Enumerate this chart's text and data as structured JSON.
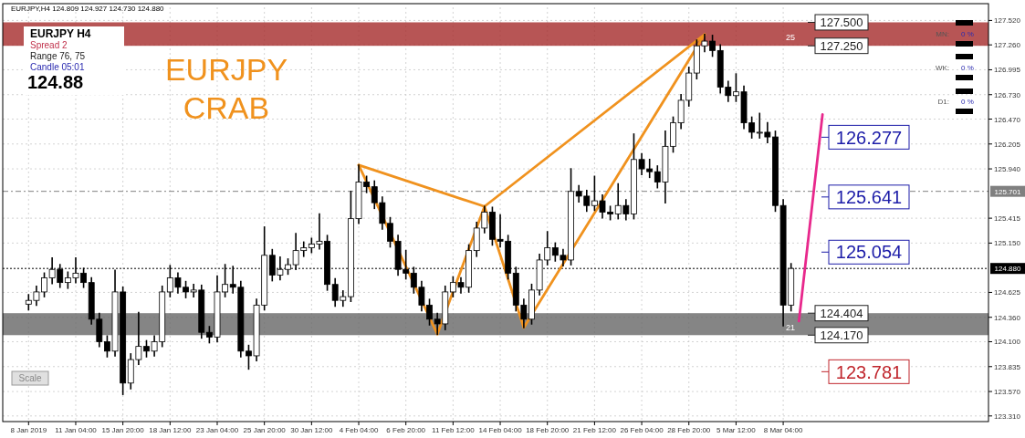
{
  "chart_data": {
    "type": "candlestick",
    "title": "EURJPY CRAB",
    "categories": [
      "8 Jan 2019",
      null,
      null,
      null,
      null,
      null,
      "11 Jan 04:00",
      null,
      null,
      null,
      null,
      null,
      "15 Jan 20:00",
      null,
      null,
      null,
      null,
      null,
      "18 Jan 12:00",
      null,
      null,
      null,
      null,
      null,
      "23 Jan 04:00",
      null,
      null,
      null,
      null,
      null,
      "25 Jan 20:00",
      null,
      null,
      null,
      null,
      null,
      "30 Jan 12:00",
      null,
      null,
      null,
      null,
      null,
      "4 Feb 04:00",
      null,
      null,
      null,
      null,
      null,
      "6 Feb 20:00",
      null,
      null,
      null,
      null,
      null,
      "11 Feb 12:00",
      null,
      null,
      null,
      null,
      null,
      "14 Feb 04:00",
      null,
      null,
      null,
      null,
      null,
      "18 Feb 20:00",
      null,
      null,
      null,
      null,
      null,
      "21 Feb 12:00",
      null,
      null,
      null,
      null,
      null,
      "26 Feb 04:00",
      null,
      null,
      null,
      null,
      null,
      "28 Feb 20:00",
      null,
      null,
      null,
      null,
      null,
      "5 Mar 12:00",
      null,
      null,
      null,
      null,
      null,
      "8 Mar 04:00",
      null,
      null,
      null,
      null,
      null,
      null,
      null,
      null,
      null,
      null,
      null,
      null,
      null,
      null,
      null,
      null,
      null,
      null,
      null,
      null,
      null,
      null,
      null,
      null,
      null
    ],
    "ohlc": [
      [
        124.5,
        124.6,
        124.44,
        124.54
      ],
      [
        124.54,
        124.69,
        124.49,
        124.63
      ],
      [
        124.63,
        124.83,
        124.58,
        124.78
      ],
      [
        124.78,
        124.99,
        124.72,
        124.87
      ],
      [
        124.87,
        124.92,
        124.68,
        124.73
      ],
      [
        124.73,
        124.84,
        124.67,
        124.78
      ],
      [
        124.78,
        124.99,
        124.73,
        124.83
      ],
      [
        124.83,
        124.88,
        124.68,
        124.73
      ],
      [
        124.73,
        124.78,
        124.29,
        124.34
      ],
      [
        124.34,
        124.4,
        124.05,
        124.1
      ],
      [
        124.1,
        124.16,
        123.94,
        124.0
      ],
      [
        124.0,
        124.86,
        123.95,
        124.63
      ],
      [
        124.63,
        124.68,
        123.54,
        123.66
      ],
      [
        123.66,
        123.97,
        123.6,
        123.91
      ],
      [
        123.91,
        124.41,
        123.86,
        124.05
      ],
      [
        124.05,
        124.11,
        123.94,
        124.0
      ],
      [
        124.0,
        124.16,
        123.95,
        124.1
      ],
      [
        124.1,
        124.69,
        124.05,
        124.63
      ],
      [
        124.63,
        124.91,
        124.58,
        124.78
      ],
      [
        124.78,
        124.83,
        124.62,
        124.68
      ],
      [
        124.68,
        124.74,
        124.57,
        124.63
      ],
      [
        124.63,
        124.71,
        124.58,
        124.65
      ],
      [
        124.65,
        124.7,
        124.14,
        124.2
      ],
      [
        124.2,
        124.26,
        124.09,
        124.15
      ],
      [
        124.15,
        124.8,
        124.1,
        124.63
      ],
      [
        124.63,
        124.92,
        124.58,
        124.71
      ],
      [
        124.71,
        124.9,
        124.62,
        124.68
      ],
      [
        124.68,
        124.74,
        123.94,
        124.0
      ],
      [
        124.0,
        124.06,
        123.81,
        123.95
      ],
      [
        123.95,
        124.55,
        123.9,
        124.49
      ],
      [
        124.49,
        125.32,
        124.44,
        125.02
      ],
      [
        125.02,
        125.08,
        124.75,
        124.81
      ],
      [
        124.81,
        125.0,
        124.76,
        124.87
      ],
      [
        124.87,
        124.98,
        124.82,
        124.92
      ],
      [
        124.92,
        125.25,
        124.87,
        125.07
      ],
      [
        125.07,
        125.16,
        125.01,
        125.1
      ],
      [
        125.1,
        125.2,
        125.05,
        125.14
      ],
      [
        125.14,
        125.46,
        125.09,
        125.17
      ],
      [
        125.17,
        125.23,
        124.65,
        124.71
      ],
      [
        124.71,
        124.77,
        124.48,
        124.54
      ],
      [
        124.54,
        124.64,
        124.48,
        124.58
      ],
      [
        124.58,
        125.7,
        124.53,
        125.41
      ],
      [
        125.41,
        125.98,
        125.36,
        125.8
      ],
      [
        125.8,
        125.86,
        125.69,
        125.75
      ],
      [
        125.75,
        125.81,
        125.52,
        125.58
      ],
      [
        125.58,
        125.64,
        125.3,
        125.36
      ],
      [
        125.36,
        125.42,
        125.11,
        125.17
      ],
      [
        125.17,
        125.23,
        124.81,
        124.87
      ],
      [
        124.87,
        125.07,
        124.77,
        124.83
      ],
      [
        124.83,
        124.89,
        124.62,
        124.68
      ],
      [
        124.68,
        124.74,
        124.43,
        124.49
      ],
      [
        124.49,
        124.55,
        124.28,
        124.34
      ],
      [
        124.34,
        124.4,
        124.18,
        124.29
      ],
      [
        124.29,
        124.69,
        124.23,
        124.63
      ],
      [
        124.63,
        124.79,
        124.58,
        124.73
      ],
      [
        124.73,
        124.78,
        124.62,
        124.68
      ],
      [
        124.68,
        125.13,
        124.63,
        125.07
      ],
      [
        125.07,
        125.37,
        125.01,
        125.31
      ],
      [
        125.31,
        125.54,
        125.26,
        125.48
      ],
      [
        125.48,
        125.53,
        125.13,
        125.19
      ],
      [
        125.19,
        125.45,
        125.11,
        125.17
      ],
      [
        125.17,
        125.23,
        124.77,
        124.83
      ],
      [
        124.83,
        124.89,
        124.43,
        124.49
      ],
      [
        124.49,
        124.55,
        124.25,
        124.34
      ],
      [
        124.34,
        124.71,
        124.29,
        124.65
      ],
      [
        124.65,
        125.03,
        124.6,
        124.97
      ],
      [
        124.97,
        125.27,
        124.92,
        125.1
      ],
      [
        125.1,
        125.15,
        124.96,
        125.02
      ],
      [
        125.02,
        125.08,
        124.91,
        124.97
      ],
      [
        124.97,
        125.94,
        124.92,
        125.7
      ],
      [
        125.7,
        125.76,
        125.59,
        125.65
      ],
      [
        125.65,
        125.71,
        125.49,
        125.55
      ],
      [
        125.55,
        125.86,
        125.5,
        125.6
      ],
      [
        125.6,
        125.66,
        125.42,
        125.48
      ],
      [
        125.48,
        125.54,
        125.4,
        125.46
      ],
      [
        125.46,
        125.78,
        125.41,
        125.55
      ],
      [
        125.55,
        125.61,
        125.4,
        125.46
      ],
      [
        125.46,
        126.31,
        125.41,
        126.04
      ],
      [
        126.04,
        126.1,
        125.88,
        125.94
      ],
      [
        125.94,
        126.04,
        125.85,
        125.91
      ],
      [
        125.91,
        125.97,
        125.74,
        125.8
      ],
      [
        125.8,
        126.34,
        125.58,
        126.18
      ],
      [
        126.18,
        126.49,
        126.12,
        126.43
      ],
      [
        126.43,
        126.73,
        126.37,
        126.67
      ],
      [
        126.67,
        127.02,
        126.61,
        126.96
      ],
      [
        126.96,
        127.31,
        126.9,
        127.25
      ],
      [
        127.25,
        127.37,
        127.19,
        127.3
      ],
      [
        127.3,
        127.36,
        127.14,
        127.2
      ],
      [
        127.2,
        127.26,
        126.75,
        126.81
      ],
      [
        126.81,
        126.87,
        126.66,
        126.72
      ],
      [
        126.72,
        126.95,
        126.66,
        126.76
      ],
      [
        126.76,
        126.82,
        126.37,
        126.43
      ],
      [
        126.43,
        126.49,
        126.27,
        126.33
      ],
      [
        126.33,
        126.53,
        126.27,
        126.33
      ],
      [
        126.33,
        126.43,
        126.22,
        126.28
      ],
      [
        126.28,
        126.34,
        125.49,
        125.55
      ],
      [
        125.55,
        125.61,
        124.27,
        124.49
      ],
      [
        124.49,
        124.93,
        124.43,
        124.88
      ],
      null,
      null,
      null,
      null,
      null,
      null,
      null,
      null,
      null,
      null,
      null,
      null,
      null,
      null,
      null,
      null,
      null,
      null,
      null,
      null,
      null,
      null,
      null,
      null
    ],
    "series": [
      {
        "type": "line",
        "color": "#f0921e",
        "values": [
          null,
          null,
          null,
          null,
          null,
          null,
          null,
          null,
          null,
          null,
          null,
          null,
          null,
          null,
          null,
          null,
          null,
          null,
          null,
          null,
          null,
          null,
          null,
          null,
          null,
          null,
          null,
          null,
          null,
          null,
          null,
          null,
          null,
          null,
          null,
          null,
          null,
          null,
          null,
          null,
          null,
          null,
          125.98,
          null,
          null,
          null,
          null,
          null,
          null,
          null,
          null,
          null,
          124.18,
          null,
          null,
          null,
          null,
          null,
          125.54,
          null,
          null,
          null,
          null,
          124.25,
          null,
          null,
          null,
          null,
          null,
          null,
          null,
          null,
          null,
          null,
          null,
          null,
          null,
          null,
          null,
          null,
          null,
          null,
          null,
          null,
          null,
          null,
          127.37,
          null,
          null,
          null,
          null,
          null,
          null,
          null,
          null,
          null,
          null,
          null,
          null,
          null,
          null,
          null,
          null,
          null,
          null,
          null,
          null,
          null,
          null,
          null,
          null,
          null,
          null,
          null,
          null,
          null,
          null,
          null,
          null,
          null,
          null,
          null
        ]
      },
      {
        "type": "line",
        "color": "#f0921e",
        "values": [
          null,
          null,
          null,
          null,
          null,
          null,
          null,
          null,
          null,
          null,
          null,
          null,
          null,
          null,
          null,
          null,
          null,
          null,
          null,
          null,
          null,
          null,
          null,
          null,
          null,
          null,
          null,
          null,
          null,
          null,
          null,
          null,
          null,
          null,
          null,
          null,
          null,
          null,
          null,
          null,
          null,
          null,
          125.98,
          null,
          null,
          null,
          null,
          null,
          null,
          null,
          null,
          null,
          null,
          null,
          null,
          null,
          null,
          null,
          125.54,
          null,
          null,
          null,
          null,
          null,
          null,
          null,
          null,
          null,
          null,
          null,
          null,
          null,
          null,
          null,
          null,
          null,
          null,
          null,
          null,
          null,
          null,
          null,
          null,
          null,
          null,
          null,
          127.37,
          null,
          null,
          null,
          null,
          null,
          null,
          null,
          null,
          null,
          null,
          null,
          null,
          null,
          null,
          null,
          null,
          null,
          null,
          null,
          null,
          null,
          null,
          null,
          null,
          null,
          null,
          null,
          null,
          null,
          null,
          null,
          null,
          null,
          null,
          null
        ]
      },
      {
        "type": "line",
        "color": "#e8288c",
        "values": [
          null,
          null,
          null,
          null,
          null,
          null,
          null,
          null,
          null,
          null,
          null,
          null,
          null,
          null,
          null,
          null,
          null,
          null,
          null,
          null,
          null,
          null,
          null,
          null,
          null,
          null,
          null,
          null,
          null,
          null,
          null,
          null,
          null,
          null,
          null,
          null,
          null,
          null,
          null,
          null,
          null,
          null,
          null,
          null,
          null,
          null,
          null,
          null,
          null,
          null,
          null,
          null,
          null,
          null,
          null,
          null,
          null,
          null,
          null,
          null,
          null,
          null,
          null,
          null,
          null,
          null,
          null,
          null,
          null,
          null,
          null,
          null,
          null,
          null,
          null,
          null,
          null,
          null,
          null,
          null,
          null,
          null,
          null,
          null,
          null,
          null,
          null,
          null,
          null,
          null,
          null,
          null,
          null,
          null,
          null,
          null,
          null,
          null,
          124.32,
          null,
          null,
          126.52,
          null,
          null,
          null,
          null,
          null,
          null,
          null,
          null,
          null,
          null,
          null,
          null,
          null,
          null,
          null,
          null,
          null,
          null,
          null,
          null
        ]
      }
    ],
    "bands": [
      {
        "axis": "y",
        "from": 127.25,
        "to": 127.5,
        "label": "25",
        "color": "#a52a2a"
      },
      {
        "axis": "y",
        "from": 124.17,
        "to": 124.404,
        "label": "21",
        "color": "#666666"
      }
    ],
    "ref_lines": [
      {
        "axis": "y",
        "value": 125.701,
        "label": "125.701",
        "color": "#808080",
        "line_style": "dashed"
      },
      {
        "axis": "y",
        "value": 124.88,
        "label": "124.880",
        "color": "#000000",
        "line_style": "dotted"
      },
      {
        "axis": "y",
        "value": 127.5,
        "label": "127.500",
        "color": "#222222"
      },
      {
        "axis": "y",
        "value": 127.25,
        "label": "127.250",
        "color": "#222222"
      },
      {
        "axis": "y",
        "value": 126.277,
        "label": "126.277",
        "color": "#1c1ca8"
      },
      {
        "axis": "y",
        "value": 125.641,
        "label": "125.641",
        "color": "#1c1ca8"
      },
      {
        "axis": "y",
        "value": 125.054,
        "label": "125.054",
        "color": "#1c1ca8"
      },
      {
        "axis": "y",
        "value": 124.404,
        "label": "124.404",
        "color": "#222222"
      },
      {
        "axis": "y",
        "value": 124.17,
        "label": "124.170",
        "color": "#222222"
      },
      {
        "axis": "y",
        "value": 123.781,
        "label": "123.781",
        "color": "#c0262d"
      }
    ],
    "annotations": [
      "EURJPY,H4 124.809 124.927 124.730 124.880",
      "EURJPY   H4",
      "Spread  2",
      "Range  76, 75",
      "Candle  05:01",
      "124.88",
      "Scale",
      "MN:",
      "0 %",
      "WK:",
      "0 %",
      "D1:",
      "0 %"
    ],
    "ylim": [
      123.25,
      127.66
    ],
    "yticks": [
      {
        "value": 127.52,
        "label": "127.520"
      },
      {
        "value": 127.26,
        "label": "127.260"
      },
      {
        "value": 126.995,
        "label": "126.995"
      },
      {
        "value": 126.73,
        "label": "126.730"
      },
      {
        "value": 126.47,
        "label": "126.470"
      },
      {
        "value": 126.205,
        "label": "126.205"
      },
      {
        "value": 125.94,
        "label": "125.940"
      },
      {
        "value": 125.415,
        "label": "125.415"
      },
      {
        "value": 125.15,
        "label": "125.150"
      },
      {
        "value": 124.625,
        "label": "124.625"
      },
      {
        "value": 124.36,
        "label": "124.360"
      },
      {
        "value": 124.1,
        "label": "124.100"
      },
      {
        "value": 123.835,
        "label": "123.835"
      },
      {
        "value": 123.57,
        "label": "123.570"
      },
      {
        "value": 123.31,
        "label": "123.310"
      }
    ],
    "grid": true
  }
}
